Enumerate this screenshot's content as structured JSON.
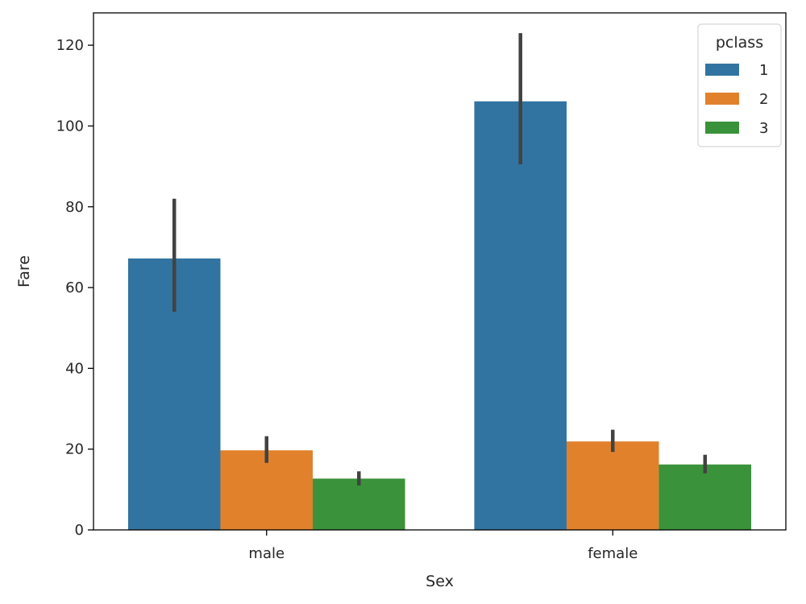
{
  "chart_data": {
    "type": "bar",
    "title": "",
    "xlabel": "Sex",
    "ylabel": "Fare",
    "categories": [
      "male",
      "female"
    ],
    "ylim": [
      0,
      128
    ],
    "yticks": [
      0,
      20,
      40,
      60,
      80,
      100,
      120
    ],
    "grid": false,
    "legend": {
      "title": "pclass",
      "placement": "top-right"
    },
    "series": [
      {
        "name": "1",
        "color": "#3274a1",
        "values": [
          67.2,
          106.1
        ],
        "ci_low": [
          54.0,
          90.5
        ],
        "ci_high": [
          82.0,
          123.0
        ]
      },
      {
        "name": "2",
        "color": "#e1812c",
        "values": [
          19.7,
          21.9
        ],
        "ci_low": [
          16.6,
          19.3
        ],
        "ci_high": [
          23.2,
          24.8
        ]
      },
      {
        "name": "3",
        "color": "#3a923a",
        "values": [
          12.7,
          16.2
        ],
        "ci_low": [
          11.0,
          14.0
        ],
        "ci_high": [
          14.5,
          18.6
        ]
      }
    ]
  }
}
